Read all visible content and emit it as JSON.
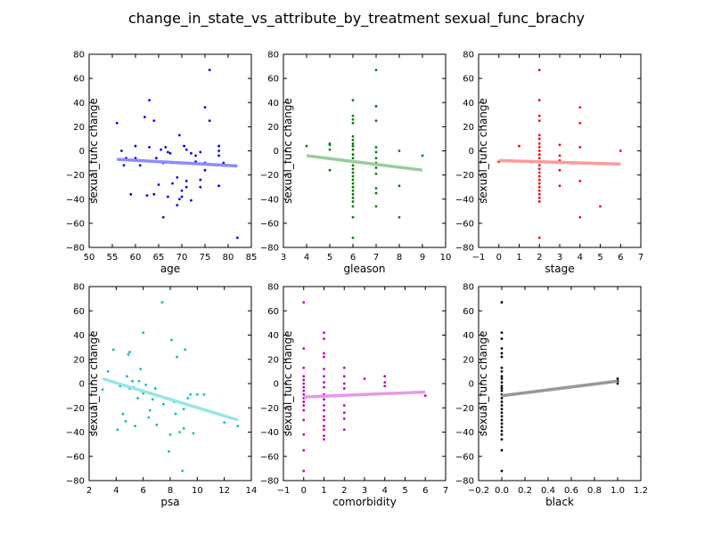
{
  "figure": {
    "title": "change_in_state_vs_attribute_by_treatment sexual_func_brachy"
  },
  "chart_data": [
    {
      "type": "scatter",
      "xlabel": "age",
      "ylabel": "sexual_func change",
      "xlim": [
        50,
        85
      ],
      "ylim": [
        -80,
        80
      ],
      "xticks": [
        "50",
        "55",
        "60",
        "65",
        "70",
        "75",
        "80",
        "85"
      ],
      "yticks": [
        "80",
        "60",
        "40",
        "20",
        "0",
        "−20",
        "−40",
        "−60",
        "−80"
      ],
      "point_color": "#0000ff",
      "line_color": "#8c8cff",
      "points": [
        [
          56,
          23
        ],
        [
          57,
          0
        ],
        [
          57.5,
          -12
        ],
        [
          58,
          -6
        ],
        [
          59,
          -36
        ],
        [
          60,
          4
        ],
        [
          60,
          -6
        ],
        [
          61,
          -12
        ],
        [
          62,
          28
        ],
        [
          62.5,
          -37
        ],
        [
          63,
          42
        ],
        [
          63,
          3
        ],
        [
          64,
          25
        ],
        [
          64,
          -36
        ],
        [
          64.5,
          -6
        ],
        [
          65,
          -28
        ],
        [
          65.5,
          1
        ],
        [
          66,
          -10
        ],
        [
          66,
          -55
        ],
        [
          66.5,
          3
        ],
        [
          67,
          -38
        ],
        [
          67,
          -1
        ],
        [
          67.5,
          -2
        ],
        [
          68,
          -27
        ],
        [
          68,
          -10
        ],
        [
          69,
          -45
        ],
        [
          69,
          -22
        ],
        [
          69.5,
          -40
        ],
        [
          69.5,
          13
        ],
        [
          70,
          -33
        ],
        [
          70,
          -38
        ],
        [
          70.5,
          4
        ],
        [
          71,
          -25
        ],
        [
          71,
          -30
        ],
        [
          71,
          1
        ],
        [
          72,
          -2
        ],
        [
          72,
          -41
        ],
        [
          73,
          -9
        ],
        [
          73,
          -4
        ],
        [
          74,
          -24
        ],
        [
          74,
          -30
        ],
        [
          74,
          -1
        ],
        [
          75,
          36
        ],
        [
          75,
          -16
        ],
        [
          75,
          -10
        ],
        [
          76,
          25
        ],
        [
          76,
          67
        ],
        [
          78,
          -29
        ],
        [
          78,
          4
        ],
        [
          78,
          0
        ],
        [
          78,
          -4
        ],
        [
          79,
          -10
        ],
        [
          82,
          -72
        ]
      ],
      "fit": {
        "x": [
          56,
          82
        ],
        "y": [
          -7,
          -12.5
        ]
      }
    },
    {
      "type": "scatter",
      "xlabel": "gleason",
      "ylabel": "sexual_func change",
      "xlim": [
        3,
        10
      ],
      "ylim": [
        -80,
        80
      ],
      "xticks": [
        "3",
        "4",
        "5",
        "6",
        "7",
        "8",
        "9",
        "10"
      ],
      "yticks": [
        "80",
        "60",
        "40",
        "20",
        "0",
        "−20",
        "−40",
        "−60",
        "−80"
      ],
      "point_color": "#008000",
      "line_color": "#99cc99",
      "points": [
        [
          4,
          4
        ],
        [
          5,
          -16
        ],
        [
          5,
          1
        ],
        [
          5,
          5
        ],
        [
          5,
          6
        ],
        [
          6,
          42
        ],
        [
          6,
          29
        ],
        [
          6,
          26
        ],
        [
          6,
          23
        ],
        [
          6,
          12
        ],
        [
          6,
          9
        ],
        [
          6,
          6
        ],
        [
          6,
          4
        ],
        [
          6,
          1
        ],
        [
          6,
          -3
        ],
        [
          6,
          -6
        ],
        [
          6,
          -9
        ],
        [
          6,
          -12
        ],
        [
          6,
          -15
        ],
        [
          6,
          -18
        ],
        [
          6,
          -21
        ],
        [
          6,
          -24
        ],
        [
          6,
          -27
        ],
        [
          6,
          -30
        ],
        [
          6,
          -33
        ],
        [
          6,
          -36
        ],
        [
          6,
          -39
        ],
        [
          6,
          -42
        ],
        [
          6,
          -46
        ],
        [
          6,
          -55
        ],
        [
          6,
          -72
        ],
        [
          7,
          67
        ],
        [
          7,
          37
        ],
        [
          7,
          25
        ],
        [
          7,
          3
        ],
        [
          7,
          -1
        ],
        [
          7,
          -6
        ],
        [
          7,
          -10
        ],
        [
          7,
          -14
        ],
        [
          7,
          -19
        ],
        [
          7,
          -31
        ],
        [
          7,
          -35
        ],
        [
          7,
          -46
        ],
        [
          8,
          0
        ],
        [
          8,
          -29
        ],
        [
          8,
          -55
        ],
        [
          9,
          -4
        ]
      ],
      "fit": {
        "x": [
          4,
          9
        ],
        "y": [
          -4,
          -16
        ]
      }
    },
    {
      "type": "scatter",
      "xlabel": "stage",
      "ylabel": "sexual_func change",
      "xlim": [
        -1,
        7
      ],
      "ylim": [
        -80,
        80
      ],
      "xticks": [
        "−1",
        "0",
        "1",
        "2",
        "3",
        "4",
        "5",
        "6",
        "7"
      ],
      "yticks": [
        "80",
        "60",
        "40",
        "20",
        "0",
        "−20",
        "−40",
        "−60",
        "−80"
      ],
      "point_color": "#ff0000",
      "line_color": "#ff9999",
      "points": [
        [
          0,
          -9
        ],
        [
          1,
          4
        ],
        [
          2,
          67
        ],
        [
          2,
          42
        ],
        [
          2,
          29
        ],
        [
          2,
          25
        ],
        [
          2,
          13
        ],
        [
          2,
          10
        ],
        [
          2,
          6
        ],
        [
          2,
          3
        ],
        [
          2,
          0
        ],
        [
          2,
          -3
        ],
        [
          2,
          -6
        ],
        [
          2,
          -9
        ],
        [
          2,
          -12
        ],
        [
          2,
          -15
        ],
        [
          2,
          -18
        ],
        [
          2,
          -21
        ],
        [
          2,
          -24
        ],
        [
          2,
          -27
        ],
        [
          2,
          -30
        ],
        [
          2,
          -33
        ],
        [
          2,
          -36
        ],
        [
          2,
          -39
        ],
        [
          2,
          -42
        ],
        [
          2,
          -72
        ],
        [
          3,
          5
        ],
        [
          3,
          -4
        ],
        [
          3,
          -8
        ],
        [
          3,
          -16
        ],
        [
          3,
          -29
        ],
        [
          4,
          36
        ],
        [
          4,
          23
        ],
        [
          4,
          3
        ],
        [
          4,
          -25
        ],
        [
          4,
          -55
        ],
        [
          5,
          -46
        ],
        [
          6,
          0
        ]
      ],
      "fit": {
        "x": [
          0,
          6
        ],
        "y": [
          -8,
          -11
        ]
      }
    },
    {
      "type": "scatter",
      "xlabel": "psa",
      "ylabel": "sexual_func change",
      "xlim": [
        2,
        14
      ],
      "ylim": [
        -80,
        80
      ],
      "xticks": [
        "2",
        "4",
        "6",
        "8",
        "10",
        "12",
        "14"
      ],
      "yticks": [
        "80",
        "60",
        "40",
        "20",
        "0",
        "−20",
        "−40",
        "−60",
        "−80"
      ],
      "point_color": "#00bfbf",
      "line_color": "#99e6e6",
      "points": [
        [
          3,
          -5
        ],
        [
          3.4,
          10
        ],
        [
          3.8,
          28
        ],
        [
          4.1,
          -38
        ],
        [
          4.3,
          -2
        ],
        [
          4.5,
          -25
        ],
        [
          4.7,
          -31
        ],
        [
          4.8,
          6
        ],
        [
          4.9,
          24
        ],
        [
          5,
          26
        ],
        [
          5,
          -4
        ],
        [
          5.2,
          2
        ],
        [
          5.3,
          -3
        ],
        [
          5.4,
          -35
        ],
        [
          5.6,
          -12
        ],
        [
          5.7,
          2
        ],
        [
          5.8,
          12
        ],
        [
          6,
          42
        ],
        [
          6,
          -8
        ],
        [
          6.2,
          -1
        ],
        [
          6.4,
          -28
        ],
        [
          6.5,
          -22
        ],
        [
          6.7,
          -13
        ],
        [
          6.9,
          -4
        ],
        [
          7,
          -34
        ],
        [
          7.2,
          -10
        ],
        [
          7.4,
          67
        ],
        [
          7.5,
          -17
        ],
        [
          7.7,
          -12
        ],
        [
          7.9,
          -56
        ],
        [
          8,
          -42
        ],
        [
          8.1,
          36
        ],
        [
          8.3,
          -15
        ],
        [
          8.4,
          -25
        ],
        [
          8.5,
          22
        ],
        [
          8.7,
          -40
        ],
        [
          8.9,
          -72
        ],
        [
          9,
          -37
        ],
        [
          9,
          -21
        ],
        [
          9.1,
          28
        ],
        [
          9.3,
          -12
        ],
        [
          9.5,
          -9
        ],
        [
          9.7,
          -41
        ],
        [
          10,
          -9
        ],
        [
          10.5,
          -9
        ],
        [
          12,
          -32
        ],
        [
          13,
          -35
        ]
      ],
      "fit": {
        "x": [
          3,
          13
        ],
        "y": [
          4,
          -30
        ]
      }
    },
    {
      "type": "scatter",
      "xlabel": "comorbidity",
      "ylabel": "sexual_func change",
      "xlim": [
        -1,
        7
      ],
      "ylim": [
        -80,
        80
      ],
      "xticks": [
        "−1",
        "0",
        "1",
        "2",
        "3",
        "4",
        "5",
        "6",
        "7"
      ],
      "yticks": [
        "80",
        "60",
        "40",
        "20",
        "0",
        "−20",
        "−40",
        "−60",
        "−80"
      ],
      "point_color": "#bf00bf",
      "line_color": "#e699e6",
      "points": [
        [
          0,
          67
        ],
        [
          0,
          29
        ],
        [
          0,
          13
        ],
        [
          0,
          6
        ],
        [
          0,
          3
        ],
        [
          0,
          0
        ],
        [
          0,
          -3
        ],
        [
          0,
          -6
        ],
        [
          0,
          -9
        ],
        [
          0,
          -12
        ],
        [
          0,
          -15
        ],
        [
          0,
          -18
        ],
        [
          0,
          -22
        ],
        [
          0,
          -30
        ],
        [
          0,
          -42
        ],
        [
          0,
          -55
        ],
        [
          0,
          -72
        ],
        [
          1,
          42
        ],
        [
          1,
          37
        ],
        [
          1,
          25
        ],
        [
          1,
          22
        ],
        [
          1,
          12
        ],
        [
          1,
          6
        ],
        [
          1,
          1
        ],
        [
          1,
          -3
        ],
        [
          1,
          -9
        ],
        [
          1,
          -13
        ],
        [
          1,
          -18
        ],
        [
          1,
          -22
        ],
        [
          1,
          -27
        ],
        [
          1,
          -30
        ],
        [
          1,
          -35
        ],
        [
          1,
          -38
        ],
        [
          1,
          -43
        ],
        [
          1,
          -46
        ],
        [
          2,
          13
        ],
        [
          2,
          6
        ],
        [
          2,
          0
        ],
        [
          2,
          -4
        ],
        [
          2,
          -10
        ],
        [
          2,
          -18
        ],
        [
          2,
          -24
        ],
        [
          2,
          -29
        ],
        [
          2,
          -38
        ],
        [
          3,
          4
        ],
        [
          4,
          6
        ],
        [
          4,
          1
        ],
        [
          4,
          -2
        ],
        [
          6,
          -10
        ]
      ],
      "fit": {
        "x": [
          0,
          6
        ],
        "y": [
          -11,
          -7
        ]
      }
    },
    {
      "type": "scatter",
      "xlabel": "black",
      "ylabel": "sexual_func change",
      "xlim": [
        -0.2,
        1.2
      ],
      "ylim": [
        -80,
        80
      ],
      "xticks": [
        "−0.2",
        "0.0",
        "0.2",
        "0.4",
        "0.6",
        "0.8",
        "1.0",
        "1.2"
      ],
      "yticks": [
        "80",
        "60",
        "40",
        "20",
        "0",
        "−20",
        "−40",
        "−60",
        "−80"
      ],
      "point_color": "#000000",
      "line_color": "#999999",
      "points": [
        [
          0,
          67
        ],
        [
          0,
          42
        ],
        [
          0,
          37
        ],
        [
          0,
          29
        ],
        [
          0,
          25
        ],
        [
          0,
          22
        ],
        [
          0,
          13
        ],
        [
          0,
          10
        ],
        [
          0,
          6
        ],
        [
          0,
          4
        ],
        [
          0,
          1
        ],
        [
          0,
          -2
        ],
        [
          0,
          -4
        ],
        [
          0,
          -6
        ],
        [
          0,
          -9
        ],
        [
          0,
          -12
        ],
        [
          0,
          -15
        ],
        [
          0,
          -18
        ],
        [
          0,
          -21
        ],
        [
          0,
          -24
        ],
        [
          0,
          -27
        ],
        [
          0,
          -30
        ],
        [
          0,
          -33
        ],
        [
          0,
          -36
        ],
        [
          0,
          -39
        ],
        [
          0,
          -42
        ],
        [
          0,
          -46
        ],
        [
          0,
          -55
        ],
        [
          0,
          -72
        ],
        [
          1,
          4
        ],
        [
          1,
          2
        ],
        [
          1,
          0
        ]
      ],
      "fit": {
        "x": [
          0,
          1
        ],
        "y": [
          -10,
          2
        ]
      }
    }
  ]
}
